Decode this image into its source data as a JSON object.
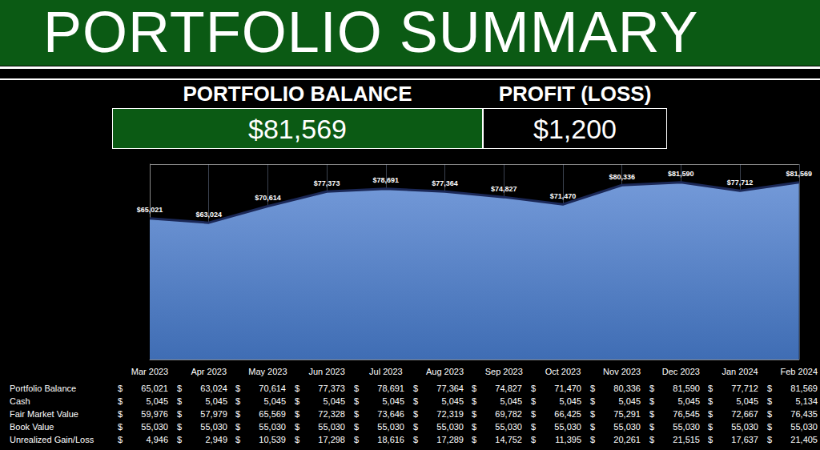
{
  "header": {
    "title": "PORTFOLIO SUMMARY"
  },
  "kpis": [
    {
      "label": "PORTFOLIO BALANCE",
      "value": "$81,569"
    },
    {
      "label": "PROFIT (LOSS)",
      "value": "$1,200"
    }
  ],
  "chart_data": {
    "type": "area",
    "categories": [
      "Mar 2023",
      "Apr 2023",
      "May 2023",
      "Jun 2023",
      "Jul 2023",
      "Aug 2023",
      "Sep 2023",
      "Oct 2023",
      "Nov 2023",
      "Dec 2023",
      "Jan 2024",
      "Feb 2024"
    ],
    "values": [
      65021,
      63024,
      70614,
      77373,
      78691,
      77364,
      74827,
      71470,
      80336,
      81590,
      77712,
      81569
    ],
    "value_labels": [
      "$65,021",
      "$63,024",
      "$70,614",
      "$77,373",
      "$78,691",
      "$77,364",
      "$74,827",
      "$71,470",
      "$80,336",
      "$81,590",
      "$77,712",
      "$81,569"
    ],
    "color": "#3f6db4",
    "marker": "none",
    "ylim": [
      0,
      90000
    ],
    "yticks": [
      0,
      90000
    ],
    "grid": true,
    "data_labels": true,
    "tick_labels": "x"
  },
  "table": {
    "currency_symbol": "$",
    "rows": [
      {
        "label": "Portfolio Balance",
        "values": [
          "65,021",
          "63,024",
          "70,614",
          "77,373",
          "78,691",
          "77,364",
          "74,827",
          "71,470",
          "80,336",
          "81,590",
          "77,712",
          "81,569"
        ]
      },
      {
        "label": "Cash",
        "values": [
          "5,045",
          "5,045",
          "5,045",
          "5,045",
          "5,045",
          "5,045",
          "5,045",
          "5,045",
          "5,045",
          "5,045",
          "5,045",
          "5,134"
        ]
      },
      {
        "label": "Fair Market Value",
        "values": [
          "59,976",
          "57,979",
          "65,569",
          "72,328",
          "73,646",
          "72,319",
          "69,782",
          "66,425",
          "75,291",
          "76,545",
          "72,667",
          "76,435"
        ]
      },
      {
        "label": "Book Value",
        "values": [
          "55,030",
          "55,030",
          "55,030",
          "55,030",
          "55,030",
          "55,030",
          "55,030",
          "55,030",
          "55,030",
          "55,030",
          "55,030",
          "55,030"
        ]
      },
      {
        "label": "Unrealized Gain/Loss",
        "values": [
          "4,946",
          "2,949",
          "10,539",
          "17,298",
          "18,616",
          "17,289",
          "14,752",
          "11,395",
          "20,261",
          "21,515",
          "17,637",
          "21,405"
        ]
      }
    ]
  }
}
